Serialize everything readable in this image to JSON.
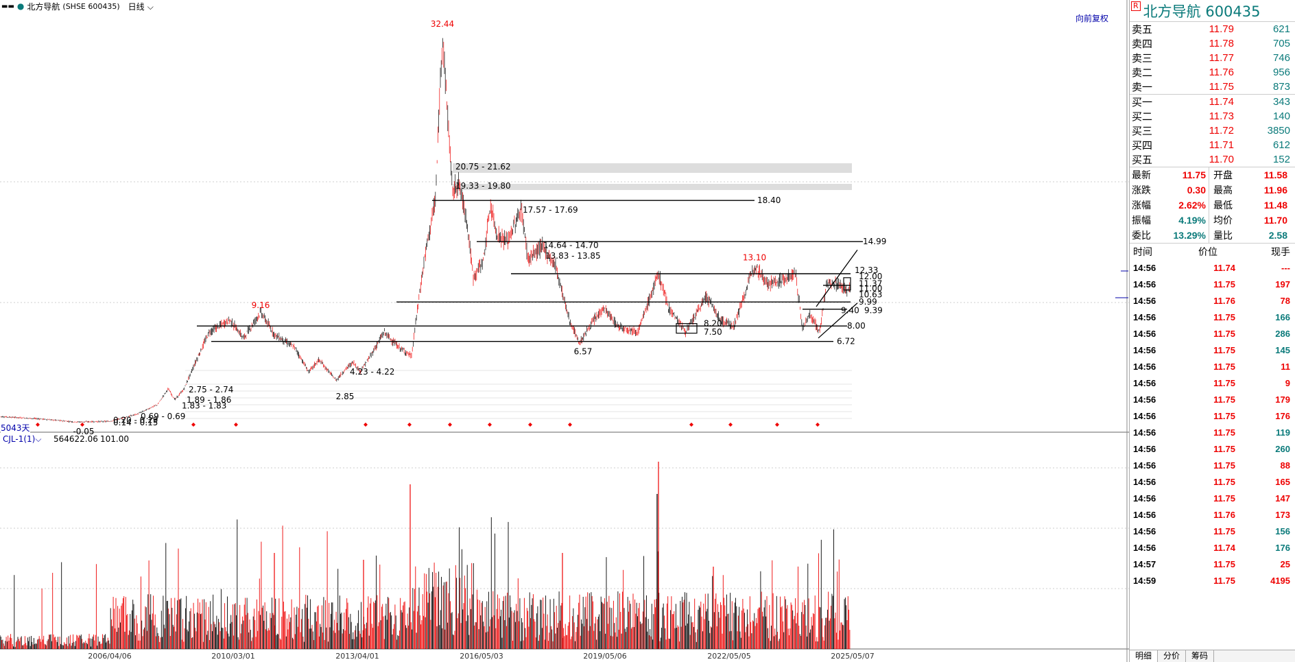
{
  "topbar": {
    "stock_name": "北方导航",
    "stock_code": "(SHSE 600435)",
    "period": "日线"
  },
  "chart": {
    "adjust_mode": "向前复权",
    "days_label": "5043天",
    "volume_indicator": "CJL-1(1)",
    "volume_value": "564622.06",
    "volume_value2": "101.00",
    "date_labels": [
      "2006/04/06",
      "2010/03/01",
      "2013/04/01",
      "2016/05/03",
      "2019/05/06",
      "2022/05/05",
      "2025/05/07"
    ],
    "peak_labels": [
      {
        "text": "32.44",
        "color": "#e00"
      },
      {
        "text": "9.16",
        "color": "#e00"
      },
      {
        "text": "13.10",
        "color": "#e00"
      }
    ],
    "trough_labels": [
      "6.57",
      "2.85",
      "-0.05"
    ],
    "zone_labels": [
      "20.75 - 21.62",
      "19.33 - 19.80",
      "17.57 - 17.69",
      "14.64 - 14.70",
      "13.83 - 13.85",
      "4.23 - 4.22",
      "2.75 - 2.74",
      "1.89 - 1.86",
      "1.83 - 1.83",
      "0.69 - 0.69",
      "0.20 - 0.29",
      "0.14 - 0.15"
    ],
    "line_labels": [
      "18.40",
      "14.99",
      "12.33",
      "12.00",
      "11.37",
      "11.00",
      "10.63",
      "9.99",
      "9.39",
      "9.40",
      "8.00",
      "8.20",
      "7.50",
      "6.72"
    ],
    "colors": {
      "up": "#e00",
      "down": "#000",
      "teal": "#0a7a7a",
      "label_red": "#e00"
    }
  },
  "quote": {
    "r_badge": "R",
    "title": "北方导航  600435",
    "asks": [
      {
        "label": "卖五",
        "price": "11.79",
        "vol": "621"
      },
      {
        "label": "卖四",
        "price": "11.78",
        "vol": "705"
      },
      {
        "label": "卖三",
        "price": "11.77",
        "vol": "746"
      },
      {
        "label": "卖二",
        "price": "11.76",
        "vol": "956"
      },
      {
        "label": "卖一",
        "price": "11.75",
        "vol": "873"
      }
    ],
    "bids": [
      {
        "label": "买一",
        "price": "11.74",
        "vol": "343"
      },
      {
        "label": "买二",
        "price": "11.73",
        "vol": "140"
      },
      {
        "label": "买三",
        "price": "11.72",
        "vol": "3850"
      },
      {
        "label": "买四",
        "price": "11.71",
        "vol": "612"
      },
      {
        "label": "买五",
        "price": "11.70",
        "vol": "152"
      }
    ],
    "stats": [
      {
        "l1": "最新",
        "v1": "11.75",
        "c1": "#e00",
        "l2": "开盘",
        "v2": "11.58",
        "c2": "#e00"
      },
      {
        "l1": "涨跌",
        "v1": "0.30",
        "c1": "#e00",
        "l2": "最高",
        "v2": "11.96",
        "c2": "#e00"
      },
      {
        "l1": "涨幅",
        "v1": "2.62%",
        "c1": "#e00",
        "l2": "最低",
        "v2": "11.48",
        "c2": "#e00"
      },
      {
        "l1": "振幅",
        "v1": "4.19%",
        "c1": "#0a7a7a",
        "l2": "均价",
        "v2": "11.70",
        "c2": "#e00"
      },
      {
        "l1": "委比",
        "v1": "13.29%",
        "c1": "#0a7a7a",
        "l2": "量比",
        "v2": "2.58",
        "c2": "#0a7a7a"
      }
    ],
    "tick_header": {
      "time": "时间",
      "price": "价位",
      "vol": "现手"
    },
    "ticks": [
      {
        "time": "14:56",
        "price": "11.74",
        "vol": "---",
        "c": "#e00"
      },
      {
        "time": "14:56",
        "price": "11.75",
        "vol": "197",
        "c": "#e00"
      },
      {
        "time": "14:56",
        "price": "11.76",
        "vol": "78",
        "c": "#e00"
      },
      {
        "time": "14:56",
        "price": "11.75",
        "vol": "166",
        "c": "#0a7a7a"
      },
      {
        "time": "14:56",
        "price": "11.75",
        "vol": "286",
        "c": "#0a7a7a"
      },
      {
        "time": "14:56",
        "price": "11.75",
        "vol": "145",
        "c": "#0a7a7a"
      },
      {
        "time": "14:56",
        "price": "11.75",
        "vol": "11",
        "c": "#e00"
      },
      {
        "time": "14:56",
        "price": "11.75",
        "vol": "9",
        "c": "#e00"
      },
      {
        "time": "14:56",
        "price": "11.75",
        "vol": "179",
        "c": "#e00"
      },
      {
        "time": "14:56",
        "price": "11.75",
        "vol": "176",
        "c": "#e00"
      },
      {
        "time": "14:56",
        "price": "11.75",
        "vol": "119",
        "c": "#0a7a7a"
      },
      {
        "time": "14:56",
        "price": "11.75",
        "vol": "260",
        "c": "#0a7a7a"
      },
      {
        "time": "14:56",
        "price": "11.75",
        "vol": "88",
        "c": "#e00"
      },
      {
        "time": "14:56",
        "price": "11.75",
        "vol": "165",
        "c": "#e00"
      },
      {
        "time": "14:56",
        "price": "11.75",
        "vol": "147",
        "c": "#e00"
      },
      {
        "time": "14:56",
        "price": "11.76",
        "vol": "173",
        "c": "#e00"
      },
      {
        "time": "14:56",
        "price": "11.75",
        "vol": "156",
        "c": "#0a7a7a"
      },
      {
        "time": "14:56",
        "price": "11.74",
        "vol": "176",
        "c": "#0a7a7a"
      },
      {
        "time": "14:57",
        "price": "11.75",
        "vol": "25",
        "c": "#e00"
      },
      {
        "time": "14:59",
        "price": "11.75",
        "vol": "4195",
        "c": "#e00"
      }
    ],
    "tabs": [
      "明细",
      "分价",
      "筹码"
    ]
  }
}
